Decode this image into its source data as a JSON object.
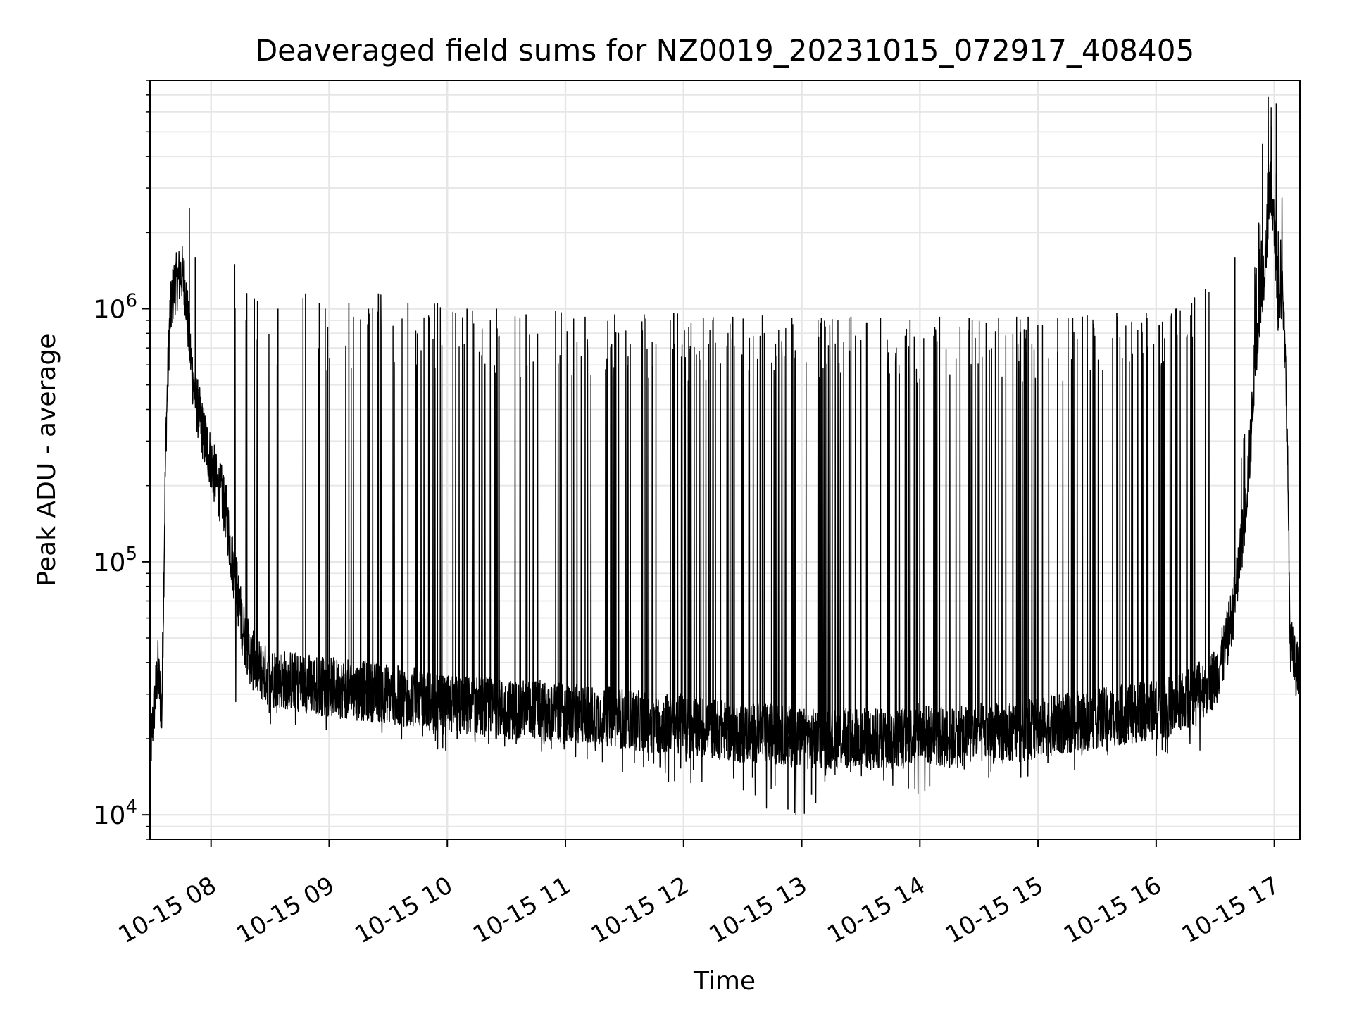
{
  "chart_data": {
    "type": "line",
    "title": "Deaveraged field sums for NZ0019_20231015_072917_408405",
    "xlabel": "Time",
    "ylabel": "Peak ADU - average",
    "yscale": "log",
    "grid": true,
    "xlim": [
      "2023-10-15 07:29",
      "2023-10-15 17:13"
    ],
    "ylim": [
      8000,
      8000000
    ],
    "x_ticks": [
      {
        "value": "2023-10-15 08:00",
        "label": "10-15 08"
      },
      {
        "value": "2023-10-15 09:00",
        "label": "10-15 09"
      },
      {
        "value": "2023-10-15 10:00",
        "label": "10-15 10"
      },
      {
        "value": "2023-10-15 11:00",
        "label": "10-15 11"
      },
      {
        "value": "2023-10-15 12:00",
        "label": "10-15 12"
      },
      {
        "value": "2023-10-15 13:00",
        "label": "10-15 13"
      },
      {
        "value": "2023-10-15 14:00",
        "label": "10-15 14"
      },
      {
        "value": "2023-10-15 15:00",
        "label": "10-15 15"
      },
      {
        "value": "2023-10-15 16:00",
        "label": "10-15 16"
      },
      {
        "value": "2023-10-15 17:00",
        "label": "10-15 17"
      }
    ],
    "y_ticks": [
      {
        "value": 10000,
        "base": "10",
        "exp": "4"
      },
      {
        "value": 100000,
        "base": "10",
        "exp": "5"
      },
      {
        "value": 1000000,
        "base": "10",
        "exp": "6"
      }
    ],
    "series": [
      {
        "color": "#000000",
        "x": [
          "2023-10-15 07:29",
          "2023-10-15 07:31",
          "2023-10-15 07:33",
          "2023-10-15 07:35",
          "2023-10-15 07:37",
          "2023-10-15 07:39",
          "2023-10-15 07:41",
          "2023-10-15 07:43",
          "2023-10-15 07:45",
          "2023-10-15 07:47",
          "2023-10-15 07:50",
          "2023-10-15 07:52",
          "2023-10-15 07:54",
          "2023-10-15 07:57",
          "2023-10-15 08:00",
          "2023-10-15 08:03",
          "2023-10-15 08:06",
          "2023-10-15 08:08",
          "2023-10-15 08:10",
          "2023-10-15 08:13",
          "2023-10-15 08:16",
          "2023-10-15 08:20",
          "2023-10-15 08:25",
          "2023-10-15 08:30",
          "2023-10-15 08:40",
          "2023-10-15 08:50",
          "2023-10-15 09:00",
          "2023-10-15 09:15",
          "2023-10-15 09:30",
          "2023-10-15 09:45",
          "2023-10-15 10:00",
          "2023-10-15 10:15",
          "2023-10-15 10:30",
          "2023-10-15 10:45",
          "2023-10-15 11:00",
          "2023-10-15 11:15",
          "2023-10-15 11:30",
          "2023-10-15 11:45",
          "2023-10-15 12:00",
          "2023-10-15 12:15",
          "2023-10-15 12:30",
          "2023-10-15 12:45",
          "2023-10-15 13:00",
          "2023-10-15 13:15",
          "2023-10-15 13:30",
          "2023-10-15 13:45",
          "2023-10-15 14:00",
          "2023-10-15 14:15",
          "2023-10-15 14:30",
          "2023-10-15 14:45",
          "2023-10-15 15:00",
          "2023-10-15 15:15",
          "2023-10-15 15:30",
          "2023-10-15 15:45",
          "2023-10-15 16:00",
          "2023-10-15 16:10",
          "2023-10-15 16:20",
          "2023-10-15 16:30",
          "2023-10-15 16:35",
          "2023-10-15 16:40",
          "2023-10-15 16:45",
          "2023-10-15 16:48",
          "2023-10-15 16:50",
          "2023-10-15 16:52",
          "2023-10-15 16:55",
          "2023-10-15 16:58",
          "2023-10-15 17:00",
          "2023-10-15 17:02",
          "2023-10-15 17:04",
          "2023-10-15 17:06",
          "2023-10-15 17:07",
          "2023-10-15 17:08",
          "2023-10-15 17:10",
          "2023-10-15 17:13"
        ],
        "y": [
          17000,
          26000,
          38000,
          25000,
          300000,
          900000,
          1200000,
          1300000,
          1400000,
          1200000,
          600000,
          450000,
          380000,
          300000,
          250000,
          200000,
          180000,
          150000,
          110000,
          80000,
          55000,
          42000,
          37000,
          35000,
          34000,
          33000,
          32000,
          31000,
          30000,
          29000,
          27000,
          27000,
          26000,
          26000,
          25000,
          25000,
          24000,
          23000,
          23000,
          22000,
          21000,
          21000,
          20000,
          20000,
          20000,
          20000,
          21000,
          20000,
          21000,
          21000,
          22000,
          23000,
          24000,
          25000,
          26000,
          27000,
          30000,
          35000,
          45000,
          70000,
          150000,
          300000,
          600000,
          900000,
          1500000,
          3000000,
          2000000,
          1000000,
          1200000,
          500000,
          200000,
          50000,
          40000,
          35000
        ]
      },
      {
        "color": "#000000",
        "x": [
          "2023-10-15 07:49",
          "2023-10-15 07:52",
          "2023-10-15 08:12",
          "2023-10-15 08:22",
          "2023-10-15 08:34",
          "2023-10-15 08:48",
          "2023-10-15 08:55",
          "2023-10-15 08:58",
          "2023-10-15 09:10",
          "2023-10-15 09:20",
          "2023-10-15 09:25",
          "2023-10-15 09:40",
          "2023-10-15 09:55",
          "2023-10-15 10:10",
          "2023-10-15 10:25",
          "2023-10-15 10:40",
          "2023-10-15 10:55",
          "2023-10-15 11:10",
          "2023-10-15 11:25",
          "2023-10-15 11:40",
          "2023-10-15 11:55",
          "2023-10-15 12:10",
          "2023-10-15 12:25",
          "2023-10-15 12:40",
          "2023-10-15 12:55",
          "2023-10-15 13:10",
          "2023-10-15 13:25",
          "2023-10-15 13:40",
          "2023-10-15 13:55",
          "2023-10-15 14:10",
          "2023-10-15 14:25",
          "2023-10-15 14:40",
          "2023-10-15 14:55",
          "2023-10-15 15:10",
          "2023-10-15 15:25",
          "2023-10-15 15:40",
          "2023-10-15 15:55",
          "2023-10-15 16:10",
          "2023-10-15 16:25",
          "2023-10-15 16:40",
          "2023-10-15 16:54",
          "2023-10-15 17:01"
        ],
        "y": [
          2500000,
          1600000,
          1500000,
          1100000,
          1000000,
          1150000,
          1050000,
          1000000,
          1050000,
          1000000,
          1150000,
          1050000,
          1050000,
          1000000,
          1000000,
          950000,
          980000,
          930000,
          950000,
          950000,
          960000,
          920000,
          930000,
          940000,
          920000,
          920000,
          930000,
          920000,
          900000,
          930000,
          920000,
          920000,
          930000,
          920000,
          940000,
          960000,
          960000,
          1000000,
          1200000,
          1600000,
          4500000,
          6500000
        ]
      },
      {
        "color": "#000000",
        "x": [
          "2023-10-15 09:05",
          "2023-10-15 09:35",
          "2023-10-15 10:05",
          "2023-10-15 10:35",
          "2023-10-15 11:05",
          "2023-10-15 11:35",
          "2023-10-15 12:05",
          "2023-10-15 12:35",
          "2023-10-15 12:53",
          "2023-10-15 13:05",
          "2023-10-15 13:35",
          "2023-10-15 14:05",
          "2023-10-15 14:35",
          "2023-10-15 15:05",
          "2023-10-15 15:35",
          "2023-10-15 16:05"
        ],
        "y": [
          25000,
          23000,
          20000,
          19000,
          18000,
          16000,
          15000,
          14000,
          10500,
          12000,
          15000,
          13000,
          14000,
          16000,
          18000,
          20000
        ]
      }
    ]
  }
}
